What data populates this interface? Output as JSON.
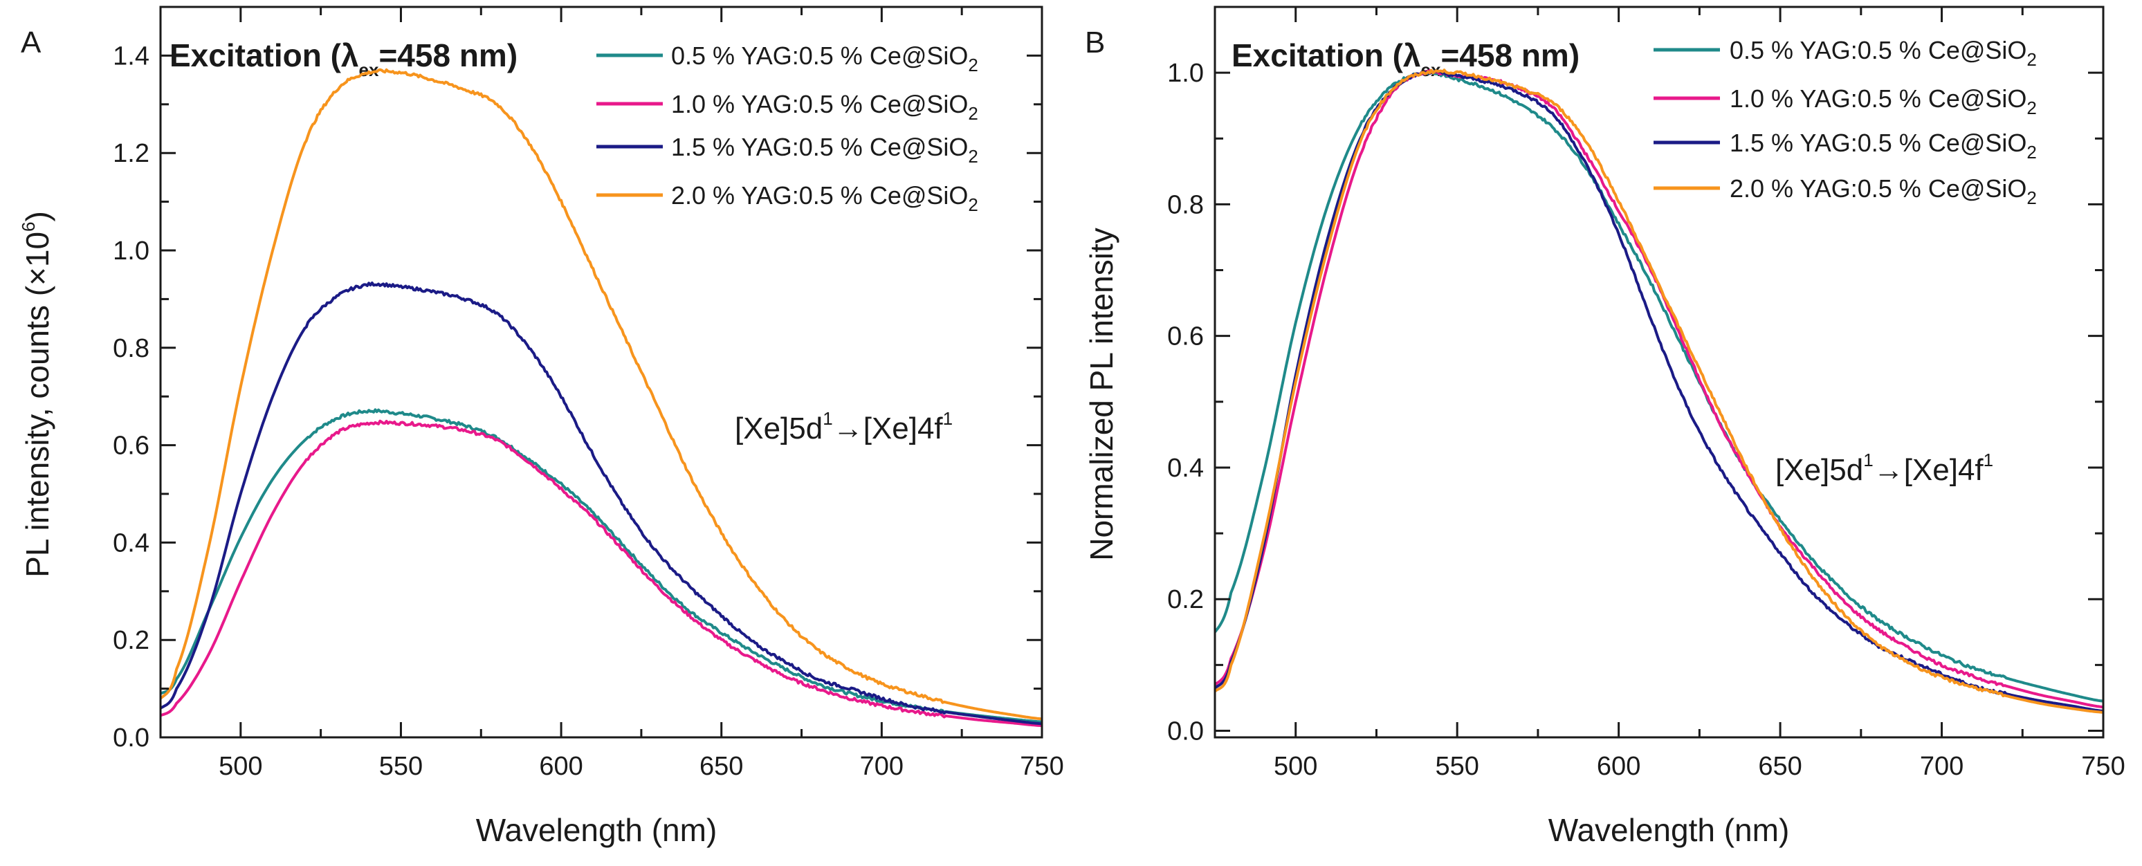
{
  "figure": {
    "colors": {
      "axis": "#1a1a1a",
      "series": [
        "#1f8a8a",
        "#e8198b",
        "#1b1b86",
        "#f7941d"
      ]
    }
  },
  "chart_data": [
    {
      "type": "line",
      "panel": "A",
      "xlabel": "Wavelength (nm)",
      "ylabel_main": "PL intensity, counts (×10",
      "ylabel_sup": "6",
      "ylabel_end": ")",
      "xlim": [
        475,
        750
      ],
      "ylim": [
        0,
        1.5
      ],
      "xticks": [
        500,
        550,
        600,
        650,
        700,
        750
      ],
      "yticks": [
        0.0,
        0.2,
        0.4,
        0.6,
        0.8,
        1.0,
        1.2,
        1.4
      ],
      "ytick_labels": [
        "0.0",
        "0.2",
        "0.4",
        "0.6",
        "0.8",
        "1.0",
        "1.2",
        "1.4"
      ],
      "xtick_labels": [
        "500",
        "550",
        "600",
        "650",
        "700",
        "750"
      ],
      "excitation": {
        "pre": "Excitation (λ",
        "sub": "ex",
        "post": "=458 nm)"
      },
      "transition": {
        "a": "[Xe]5d",
        "a_sup": "1",
        "arrow": "→[Xe]4f",
        "b_sup": "1"
      },
      "legend": [
        {
          "prefix": "0.5 % YAG:0.5 % Ce@SiO",
          "sub": "2"
        },
        {
          "prefix": "1.0 % YAG:0.5 % Ce@SiO",
          "sub": "2"
        },
        {
          "prefix": "1.5 % YAG:0.5 % Ce@SiO",
          "sub": "2"
        },
        {
          "prefix": "2.0 % YAG:0.5 % Ce@SiO",
          "sub": "2"
        }
      ],
      "x": [
        475,
        480,
        490,
        500,
        510,
        520,
        530,
        540,
        550,
        560,
        570,
        580,
        590,
        600,
        610,
        620,
        630,
        640,
        650,
        660,
        670,
        680,
        690,
        700,
        710,
        720,
        730,
        740,
        750
      ],
      "series": [
        {
          "name": "0.5 % YAG:0.5 % Ce@SiO2",
          "values": [
            0.09,
            0.12,
            0.26,
            0.41,
            0.53,
            0.61,
            0.655,
            0.67,
            0.665,
            0.655,
            0.64,
            0.615,
            0.57,
            0.52,
            0.46,
            0.39,
            0.32,
            0.26,
            0.215,
            0.175,
            0.14,
            0.11,
            0.09,
            0.075,
            0.063,
            0.053,
            0.045,
            0.038,
            0.032
          ]
        },
        {
          "name": "1.0 % YAG:0.5 % Ce@SiO2",
          "values": [
            0.045,
            0.07,
            0.17,
            0.32,
            0.46,
            0.565,
            0.625,
            0.645,
            0.645,
            0.64,
            0.63,
            0.61,
            0.565,
            0.51,
            0.45,
            0.38,
            0.31,
            0.25,
            0.2,
            0.16,
            0.125,
            0.1,
            0.08,
            0.065,
            0.053,
            0.044,
            0.036,
            0.03,
            0.024
          ]
        },
        {
          "name": "1.5 % YAG:0.5 % Ce@SiO2",
          "values": [
            0.06,
            0.1,
            0.26,
            0.5,
            0.7,
            0.84,
            0.905,
            0.93,
            0.925,
            0.915,
            0.9,
            0.87,
            0.8,
            0.7,
            0.58,
            0.47,
            0.38,
            0.31,
            0.25,
            0.195,
            0.155,
            0.12,
            0.1,
            0.08,
            0.063,
            0.052,
            0.043,
            0.035,
            0.028
          ]
        },
        {
          "name": "2.0 % YAG:0.5 % Ce@SiO2",
          "values": [
            0.08,
            0.14,
            0.39,
            0.72,
            1.0,
            1.22,
            1.33,
            1.365,
            1.365,
            1.35,
            1.33,
            1.3,
            1.22,
            1.1,
            0.96,
            0.82,
            0.68,
            0.54,
            0.42,
            0.32,
            0.24,
            0.18,
            0.14,
            0.11,
            0.09,
            0.072,
            0.058,
            0.047,
            0.038
          ]
        }
      ]
    },
    {
      "type": "line",
      "panel": "B",
      "xlabel": "Wavelength (nm)",
      "ylabel": "Normalized PL intensity",
      "xlim": [
        475,
        750
      ],
      "ylim": [
        -0.01,
        1.1
      ],
      "xticks": [
        500,
        550,
        600,
        650,
        700,
        750
      ],
      "yticks": [
        0.0,
        0.2,
        0.4,
        0.6,
        0.8,
        1.0
      ],
      "ytick_labels": [
        "0.0",
        "0.2",
        "0.4",
        "0.6",
        "0.8",
        "1.0"
      ],
      "xtick_labels": [
        "500",
        "550",
        "600",
        "650",
        "700",
        "750"
      ],
      "excitation": {
        "pre": "Excitation (λ",
        "sub": "ex",
        "post": "=458 nm)"
      },
      "transition": {
        "a": "[Xe]5d",
        "a_sup": "1",
        "arrow": "→[Xe]4f",
        "b_sup": "1"
      },
      "legend": [
        {
          "prefix": "0.5 % YAG:0.5 % Ce@SiO",
          "sub": "2"
        },
        {
          "prefix": "1.0 % YAG:0.5 % Ce@SiO",
          "sub": "2"
        },
        {
          "prefix": "1.5 % YAG:0.5 % Ce@SiO",
          "sub": "2"
        },
        {
          "prefix": "2.0 % YAG:0.5 % Ce@SiO",
          "sub": "2"
        }
      ],
      "x": [
        475,
        480,
        490,
        500,
        510,
        520,
        530,
        540,
        550,
        560,
        570,
        580,
        590,
        600,
        610,
        620,
        630,
        640,
        650,
        660,
        670,
        680,
        690,
        700,
        710,
        720,
        730,
        740,
        750
      ],
      "series": [
        {
          "name": "0.5 % YAG:0.5 % Ce@SiO2",
          "values": [
            0.15,
            0.21,
            0.39,
            0.62,
            0.8,
            0.92,
            0.98,
            1.0,
            0.99,
            0.975,
            0.95,
            0.915,
            0.855,
            0.77,
            0.68,
            0.58,
            0.48,
            0.39,
            0.32,
            0.26,
            0.21,
            0.17,
            0.14,
            0.115,
            0.095,
            0.08,
            0.067,
            0.055,
            0.045
          ]
        },
        {
          "name": "1.0 % YAG:0.5 % Ce@SiO2",
          "values": [
            0.07,
            0.11,
            0.27,
            0.5,
            0.71,
            0.875,
            0.97,
            1.0,
            0.995,
            0.99,
            0.975,
            0.945,
            0.875,
            0.79,
            0.7,
            0.59,
            0.48,
            0.39,
            0.31,
            0.25,
            0.195,
            0.155,
            0.125,
            0.1,
            0.082,
            0.068,
            0.055,
            0.045,
            0.036
          ]
        },
        {
          "name": "1.5 % YAG:0.5 % Ce@SiO2",
          "values": [
            0.065,
            0.105,
            0.28,
            0.54,
            0.75,
            0.9,
            0.975,
            1.0,
            0.995,
            0.985,
            0.968,
            0.935,
            0.86,
            0.755,
            0.625,
            0.505,
            0.41,
            0.335,
            0.27,
            0.21,
            0.165,
            0.13,
            0.107,
            0.086,
            0.068,
            0.056,
            0.046,
            0.038,
            0.03
          ]
        },
        {
          "name": "2.0 % YAG:0.5 % Ce@SiO2",
          "values": [
            0.06,
            0.1,
            0.29,
            0.53,
            0.735,
            0.895,
            0.975,
            1.0,
            1.0,
            0.99,
            0.975,
            0.953,
            0.895,
            0.805,
            0.703,
            0.6,
            0.498,
            0.396,
            0.308,
            0.234,
            0.176,
            0.132,
            0.103,
            0.081,
            0.066,
            0.053,
            0.042,
            0.034,
            0.028
          ]
        }
      ]
    }
  ]
}
